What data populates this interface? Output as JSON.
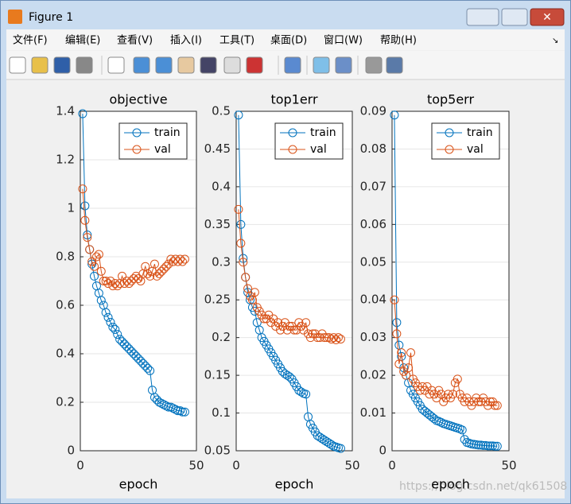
{
  "window": {
    "title": "Figure 1",
    "menu": [
      "文件(F)",
      "编辑(E)",
      "查看(V)",
      "插入(I)",
      "工具(T)",
      "桌面(D)",
      "窗口(W)",
      "帮助(H)"
    ],
    "watermark": "https://blog.csdn.net/qk61508"
  },
  "chart_data": [
    {
      "type": "line",
      "title": "objective",
      "xlabel": "epoch",
      "xlim": [
        0,
        50
      ],
      "xticks": [
        0,
        50
      ],
      "ylim": [
        0,
        1.4
      ],
      "yticks": [
        0,
        0.2,
        0.4,
        0.6,
        0.8,
        1,
        1.2,
        1.4
      ],
      "ygrid": true,
      "legend": "northeast",
      "x": [
        1,
        2,
        3,
        4,
        5,
        6,
        7,
        8,
        9,
        10,
        11,
        12,
        13,
        14,
        15,
        16,
        17,
        18,
        19,
        20,
        21,
        22,
        23,
        24,
        25,
        26,
        27,
        28,
        29,
        30,
        31,
        32,
        33,
        34,
        35,
        36,
        37,
        38,
        39,
        40,
        41,
        42,
        43,
        44,
        45
      ],
      "series": [
        {
          "name": "train",
          "color": "#0072bd",
          "values": [
            1.39,
            1.01,
            0.89,
            0.83,
            0.77,
            0.72,
            0.68,
            0.65,
            0.62,
            0.6,
            0.57,
            0.55,
            0.53,
            0.51,
            0.5,
            0.48,
            0.46,
            0.45,
            0.44,
            0.43,
            0.42,
            0.41,
            0.4,
            0.39,
            0.38,
            0.37,
            0.36,
            0.35,
            0.34,
            0.33,
            0.25,
            0.22,
            0.21,
            0.2,
            0.195,
            0.19,
            0.185,
            0.18,
            0.18,
            0.175,
            0.17,
            0.165,
            0.165,
            0.16,
            0.16
          ]
        },
        {
          "name": "val",
          "color": "#d95319",
          "values": [
            1.08,
            0.95,
            0.88,
            0.83,
            0.78,
            0.76,
            0.8,
            0.81,
            0.74,
            0.7,
            0.7,
            0.69,
            0.7,
            0.68,
            0.69,
            0.68,
            0.69,
            0.72,
            0.69,
            0.7,
            0.69,
            0.7,
            0.71,
            0.72,
            0.71,
            0.7,
            0.73,
            0.76,
            0.73,
            0.72,
            0.74,
            0.77,
            0.72,
            0.73,
            0.74,
            0.75,
            0.76,
            0.77,
            0.79,
            0.78,
            0.79,
            0.78,
            0.79,
            0.78,
            0.79
          ]
        }
      ]
    },
    {
      "type": "line",
      "title": "top1err",
      "xlabel": "epoch",
      "xlim": [
        0,
        50
      ],
      "xticks": [
        0,
        50
      ],
      "ylim": [
        0.05,
        0.5
      ],
      "yticks": [
        0.05,
        0.1,
        0.15,
        0.2,
        0.25,
        0.3,
        0.35,
        0.4,
        0.45,
        0.5
      ],
      "ygrid": true,
      "legend": "northeast",
      "x": [
        1,
        2,
        3,
        4,
        5,
        6,
        7,
        8,
        9,
        10,
        11,
        12,
        13,
        14,
        15,
        16,
        17,
        18,
        19,
        20,
        21,
        22,
        23,
        24,
        25,
        26,
        27,
        28,
        29,
        30,
        31,
        32,
        33,
        34,
        35,
        36,
        37,
        38,
        39,
        40,
        41,
        42,
        43,
        44,
        45
      ],
      "series": [
        {
          "name": "train",
          "color": "#0072bd",
          "values": [
            0.495,
            0.35,
            0.305,
            0.28,
            0.26,
            0.25,
            0.24,
            0.235,
            0.22,
            0.21,
            0.2,
            0.195,
            0.19,
            0.185,
            0.18,
            0.175,
            0.17,
            0.165,
            0.16,
            0.155,
            0.152,
            0.15,
            0.148,
            0.145,
            0.14,
            0.135,
            0.13,
            0.128,
            0.126,
            0.125,
            0.095,
            0.085,
            0.08,
            0.075,
            0.07,
            0.068,
            0.066,
            0.064,
            0.062,
            0.06,
            0.058,
            0.056,
            0.055,
            0.054,
            0.053
          ]
        },
        {
          "name": "val",
          "color": "#d95319",
          "values": [
            0.37,
            0.325,
            0.3,
            0.28,
            0.265,
            0.255,
            0.25,
            0.26,
            0.24,
            0.235,
            0.23,
            0.225,
            0.225,
            0.23,
            0.22,
            0.225,
            0.215,
            0.22,
            0.21,
            0.215,
            0.22,
            0.21,
            0.215,
            0.215,
            0.21,
            0.21,
            0.22,
            0.215,
            0.21,
            0.22,
            0.205,
            0.2,
            0.205,
            0.205,
            0.2,
            0.2,
            0.205,
            0.2,
            0.2,
            0.2,
            0.198,
            0.2,
            0.197,
            0.2,
            0.198
          ]
        }
      ]
    },
    {
      "type": "line",
      "title": "top5err",
      "xlabel": "epoch",
      "xlim": [
        0,
        50
      ],
      "xticks": [
        0,
        50
      ],
      "ylim": [
        0,
        0.09
      ],
      "yticks": [
        0,
        0.01,
        0.02,
        0.03,
        0.04,
        0.05,
        0.06,
        0.07,
        0.08,
        0.09
      ],
      "ygrid": true,
      "legend": "northeast",
      "x": [
        1,
        2,
        3,
        4,
        5,
        6,
        7,
        8,
        9,
        10,
        11,
        12,
        13,
        14,
        15,
        16,
        17,
        18,
        19,
        20,
        21,
        22,
        23,
        24,
        25,
        26,
        27,
        28,
        29,
        30,
        31,
        32,
        33,
        34,
        35,
        36,
        37,
        38,
        39,
        40,
        41,
        42,
        43,
        44,
        45
      ],
      "series": [
        {
          "name": "train",
          "color": "#0072bd",
          "values": [
            0.089,
            0.034,
            0.028,
            0.025,
            0.022,
            0.02,
            0.018,
            0.016,
            0.015,
            0.014,
            0.013,
            0.012,
            0.011,
            0.0105,
            0.01,
            0.0095,
            0.009,
            0.0085,
            0.008,
            0.0078,
            0.0075,
            0.0072,
            0.007,
            0.0068,
            0.0066,
            0.0064,
            0.0062,
            0.006,
            0.0058,
            0.0055,
            0.003,
            0.0022,
            0.002,
            0.0018,
            0.0017,
            0.0016,
            0.0015,
            0.0015,
            0.0014,
            0.0014,
            0.0013,
            0.0013,
            0.0013,
            0.0012,
            0.0012
          ]
        },
        {
          "name": "val",
          "color": "#d95319",
          "values": [
            0.04,
            0.031,
            0.023,
            0.026,
            0.021,
            0.02,
            0.022,
            0.026,
            0.019,
            0.018,
            0.017,
            0.016,
            0.017,
            0.016,
            0.017,
            0.015,
            0.016,
            0.015,
            0.014,
            0.016,
            0.015,
            0.013,
            0.014,
            0.015,
            0.014,
            0.015,
            0.018,
            0.019,
            0.015,
            0.014,
            0.013,
            0.014,
            0.013,
            0.012,
            0.013,
            0.014,
            0.013,
            0.013,
            0.014,
            0.013,
            0.012,
            0.013,
            0.013,
            0.012,
            0.012
          ]
        }
      ]
    }
  ]
}
